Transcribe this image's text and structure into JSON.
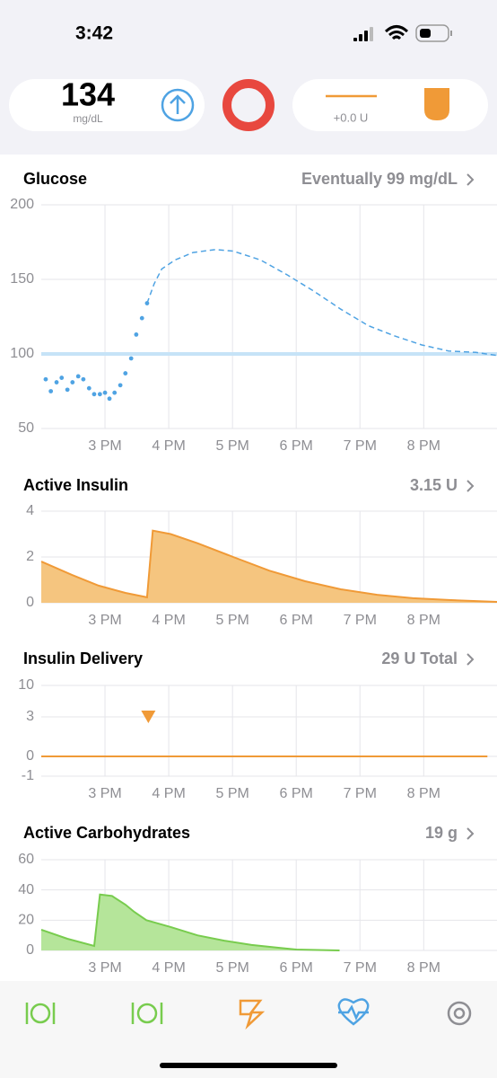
{
  "status_bar": {
    "time": "3:42"
  },
  "header": {
    "glucose": "134",
    "unit": "mg/dL",
    "insulin": "+0.0 U"
  },
  "chart_data": [
    {
      "type": "line",
      "title": "Glucose",
      "summary": "Eventually 99 mg/dL",
      "xlim": [
        14,
        21.15
      ],
      "xticks": [
        {
          "value": 15,
          "label": "3 PM"
        },
        {
          "value": 16,
          "label": "4 PM"
        },
        {
          "value": 17,
          "label": "5 PM"
        },
        {
          "value": 18,
          "label": "6 PM"
        },
        {
          "value": 19,
          "label": "7 PM"
        },
        {
          "value": 20,
          "label": "8 PM"
        }
      ],
      "ylim": [
        50,
        200
      ],
      "yticks": [
        50,
        100,
        150,
        200
      ],
      "grid": true,
      "target": 100,
      "series": [
        {
          "style": "dots",
          "color": "#4fa3e3",
          "x": [
            14.07,
            14.15,
            14.24,
            14.32,
            14.41,
            14.49,
            14.58,
            14.66,
            14.75,
            14.83,
            14.92,
            15.0,
            15.07,
            15.15,
            15.24,
            15.32,
            15.41,
            15.49,
            15.58,
            15.66
          ],
          "values": [
            83,
            75,
            81,
            84,
            76,
            81,
            85,
            83,
            77,
            73,
            73,
            74,
            70,
            74,
            79,
            87,
            97,
            113,
            124,
            134
          ]
        },
        {
          "style": "dashed",
          "color": "#4fa3e3",
          "x": [
            15.66,
            15.77,
            15.89,
            16.1,
            16.38,
            16.73,
            17.01,
            17.44,
            17.86,
            18.28,
            18.7,
            19.13,
            19.55,
            19.97,
            20.39,
            20.82,
            21.15
          ],
          "values": [
            134,
            147,
            157,
            163,
            168,
            170,
            169,
            163,
            153,
            142,
            130,
            119,
            112,
            106,
            102,
            101,
            99
          ]
        }
      ]
    },
    {
      "type": "area",
      "title": "Active Insulin",
      "summary": "3.15 U",
      "xlim": [
        14,
        21.15
      ],
      "xticks": [
        {
          "value": 15,
          "label": "3 PM"
        },
        {
          "value": 16,
          "label": "4 PM"
        },
        {
          "value": 17,
          "label": "5 PM"
        },
        {
          "value": 18,
          "label": "6 PM"
        },
        {
          "value": 19,
          "label": "7 PM"
        },
        {
          "value": 20,
          "label": "8 PM"
        }
      ],
      "ylim": [
        0,
        4
      ],
      "yticks": [
        0,
        2,
        4
      ],
      "grid": true,
      "color": "#f09a37",
      "fill": "#f5c57f",
      "x": [
        14.0,
        14.48,
        14.9,
        15.32,
        15.66,
        15.75,
        16.03,
        16.45,
        17.01,
        17.58,
        18.14,
        18.7,
        19.27,
        19.83,
        20.39,
        21.15
      ],
      "values": [
        1.8,
        1.22,
        0.75,
        0.43,
        0.24,
        3.15,
        3.0,
        2.6,
        2.0,
        1.4,
        0.94,
        0.59,
        0.35,
        0.2,
        0.12,
        0.04
      ]
    },
    {
      "type": "delivery",
      "title": "Insulin Delivery",
      "summary": "29 U Total",
      "xlim": [
        14,
        21.15
      ],
      "xticks": [
        {
          "value": 15,
          "label": "3 PM"
        },
        {
          "value": 16,
          "label": "4 PM"
        },
        {
          "value": 17,
          "label": "5 PM"
        },
        {
          "value": 18,
          "label": "6 PM"
        },
        {
          "value": 19,
          "label": "7 PM"
        },
        {
          "value": 20,
          "label": "8 PM"
        }
      ],
      "ylim": [
        -1,
        10
      ],
      "yticks": [
        -1,
        0,
        3,
        10
      ],
      "grid": true,
      "series": [
        {
          "style": "line",
          "color": "#f09a37",
          "x": [
            14.0,
            21.0
          ],
          "values": [
            0,
            0
          ]
        },
        {
          "style": "marker",
          "color": "#f09a37",
          "x": [
            15.68
          ],
          "values": [
            3
          ]
        }
      ]
    },
    {
      "type": "area",
      "title": "Active Carbohydrates",
      "summary": "19 g",
      "xlim": [
        14,
        21.15
      ],
      "xticks": [
        {
          "value": 15,
          "label": "3 PM"
        },
        {
          "value": 16,
          "label": "4 PM"
        },
        {
          "value": 17,
          "label": "5 PM"
        },
        {
          "value": 18,
          "label": "6 PM"
        },
        {
          "value": 19,
          "label": "7 PM"
        },
        {
          "value": 20,
          "label": "8 PM"
        }
      ],
      "ylim": [
        0,
        60
      ],
      "yticks": [
        0,
        20,
        40,
        60
      ],
      "grid": true,
      "color": "#78cc4e",
      "fill": "#b5e59a",
      "x": [
        14.0,
        14.41,
        14.83,
        14.92,
        15.11,
        15.32,
        15.46,
        15.65,
        16.03,
        16.45,
        16.87,
        17.3,
        17.72,
        18.0,
        18.68
      ],
      "values": [
        13.7,
        7.7,
        3,
        37,
        36,
        30.3,
        25.5,
        20,
        15.5,
        10,
        6.5,
        3.6,
        1.8,
        0.6,
        0
      ]
    }
  ]
}
